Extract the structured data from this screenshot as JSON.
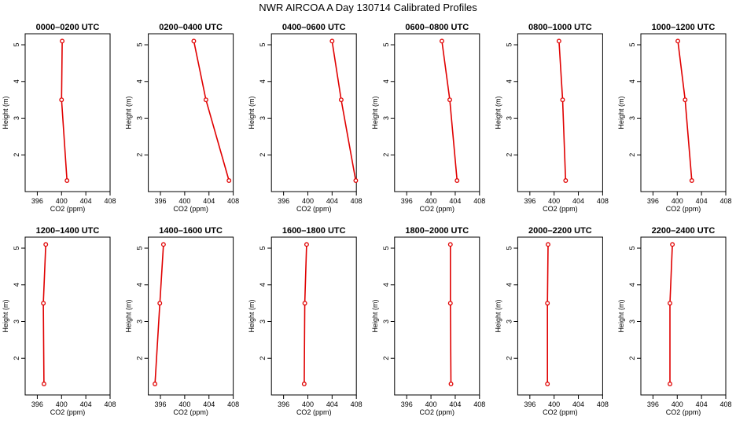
{
  "figure_title": "NWR AIRCOA A  Day 130714  Calibrated Profiles",
  "colors": {
    "line": "#e00000",
    "marker": "#e00000",
    "axis": "#000000"
  },
  "chart_data": [
    {
      "type": "line",
      "title": "0000–0200 UTC",
      "xlabel": "CO2 (ppm)",
      "ylabel": "Height (m)",
      "xlim": [
        394,
        408
      ],
      "ylim": [
        1,
        5.3
      ],
      "xticks": [
        396,
        400,
        404,
        408
      ],
      "yticks": [
        2,
        3,
        4,
        5
      ],
      "series": [
        {
          "name": "CO2",
          "x": [
            400.9,
            400.0,
            400.1
          ],
          "y": [
            1.3,
            3.5,
            5.1
          ]
        }
      ]
    },
    {
      "type": "line",
      "title": "0200–0400 UTC",
      "xlabel": "CO2 (ppm)",
      "ylabel": "Height (m)",
      "xlim": [
        394,
        408
      ],
      "ylim": [
        1,
        5.3
      ],
      "xticks": [
        396,
        400,
        404,
        408
      ],
      "yticks": [
        2,
        3,
        4,
        5
      ],
      "series": [
        {
          "name": "CO2",
          "x": [
            407.3,
            403.5,
            401.5
          ],
          "y": [
            1.3,
            3.5,
            5.1
          ]
        }
      ]
    },
    {
      "type": "line",
      "title": "0400–0600 UTC",
      "xlabel": "CO2 (ppm)",
      "ylabel": "Height (m)",
      "xlim": [
        394,
        408
      ],
      "ylim": [
        1,
        5.3
      ],
      "xticks": [
        396,
        400,
        404,
        408
      ],
      "yticks": [
        2,
        3,
        4,
        5
      ],
      "series": [
        {
          "name": "CO2",
          "x": [
            407.9,
            405.5,
            404.0
          ],
          "y": [
            1.3,
            3.5,
            5.1
          ]
        }
      ]
    },
    {
      "type": "line",
      "title": "0600–0800 UTC",
      "xlabel": "CO2 (ppm)",
      "ylabel": "Height (m)",
      "xlim": [
        394,
        408
      ],
      "ylim": [
        1,
        5.3
      ],
      "xticks": [
        396,
        400,
        404,
        408
      ],
      "yticks": [
        2,
        3,
        4,
        5
      ],
      "series": [
        {
          "name": "CO2",
          "x": [
            404.3,
            403.1,
            401.8
          ],
          "y": [
            1.3,
            3.5,
            5.1
          ]
        }
      ]
    },
    {
      "type": "line",
      "title": "0800–1000 UTC",
      "xlabel": "CO2 (ppm)",
      "ylabel": "Height (m)",
      "xlim": [
        394,
        408
      ],
      "ylim": [
        1,
        5.3
      ],
      "xticks": [
        396,
        400,
        404,
        408
      ],
      "yticks": [
        2,
        3,
        4,
        5
      ],
      "series": [
        {
          "name": "CO2",
          "x": [
            401.9,
            401.4,
            400.8
          ],
          "y": [
            1.3,
            3.5,
            5.1
          ]
        }
      ]
    },
    {
      "type": "line",
      "title": "1000–1200 UTC",
      "xlabel": "CO2 (ppm)",
      "ylabel": "Height (m)",
      "xlim": [
        394,
        408
      ],
      "ylim": [
        1,
        5.3
      ],
      "xticks": [
        396,
        400,
        404,
        408
      ],
      "yticks": [
        2,
        3,
        4,
        5
      ],
      "series": [
        {
          "name": "CO2",
          "x": [
            402.4,
            401.3,
            400.1
          ],
          "y": [
            1.3,
            3.5,
            5.1
          ]
        }
      ]
    },
    {
      "type": "line",
      "title": "1200–1400 UTC",
      "xlabel": "CO2 (ppm)",
      "ylabel": "Height (m)",
      "xlim": [
        394,
        408
      ],
      "ylim": [
        1,
        5.3
      ],
      "xticks": [
        396,
        400,
        404,
        408
      ],
      "yticks": [
        2,
        3,
        4,
        5
      ],
      "series": [
        {
          "name": "CO2",
          "x": [
            397.1,
            397.0,
            397.4
          ],
          "y": [
            1.3,
            3.5,
            5.1
          ]
        }
      ]
    },
    {
      "type": "line",
      "title": "1400–1600 UTC",
      "xlabel": "CO2 (ppm)",
      "ylabel": "Height (m)",
      "xlim": [
        394,
        408
      ],
      "ylim": [
        1,
        5.3
      ],
      "xticks": [
        396,
        400,
        404,
        408
      ],
      "yticks": [
        2,
        3,
        4,
        5
      ],
      "series": [
        {
          "name": "CO2",
          "x": [
            395.1,
            395.9,
            396.5
          ],
          "y": [
            1.3,
            3.5,
            5.1
          ]
        }
      ]
    },
    {
      "type": "line",
      "title": "1600–1800 UTC",
      "xlabel": "CO2 (ppm)",
      "ylabel": "Height (m)",
      "xlim": [
        394,
        408
      ],
      "ylim": [
        1,
        5.3
      ],
      "xticks": [
        396,
        400,
        404,
        408
      ],
      "yticks": [
        2,
        3,
        4,
        5
      ],
      "series": [
        {
          "name": "CO2",
          "x": [
            399.4,
            399.5,
            399.8
          ],
          "y": [
            1.3,
            3.5,
            5.1
          ]
        }
      ]
    },
    {
      "type": "line",
      "title": "1800–2000 UTC",
      "xlabel": "CO2 (ppm)",
      "ylabel": "Height (m)",
      "xlim": [
        394,
        408
      ],
      "ylim": [
        1,
        5.3
      ],
      "xticks": [
        396,
        400,
        404,
        408
      ],
      "yticks": [
        2,
        3,
        4,
        5
      ],
      "series": [
        {
          "name": "CO2",
          "x": [
            403.3,
            403.2,
            403.2
          ],
          "y": [
            1.3,
            3.5,
            5.1
          ]
        }
      ]
    },
    {
      "type": "line",
      "title": "2000–2200 UTC",
      "xlabel": "CO2 (ppm)",
      "ylabel": "Height (m)",
      "xlim": [
        394,
        408
      ],
      "ylim": [
        1,
        5.3
      ],
      "xticks": [
        396,
        400,
        404,
        408
      ],
      "yticks": [
        2,
        3,
        4,
        5
      ],
      "series": [
        {
          "name": "CO2",
          "x": [
            398.9,
            398.9,
            399.0
          ],
          "y": [
            1.3,
            3.5,
            5.1
          ]
        }
      ]
    },
    {
      "type": "line",
      "title": "2200–2400 UTC",
      "xlabel": "CO2 (ppm)",
      "ylabel": "Height (m)",
      "xlim": [
        394,
        408
      ],
      "ylim": [
        1,
        5.3
      ],
      "xticks": [
        396,
        400,
        404,
        408
      ],
      "yticks": [
        2,
        3,
        4,
        5
      ],
      "series": [
        {
          "name": "CO2",
          "x": [
            398.8,
            398.8,
            399.2
          ],
          "y": [
            1.3,
            3.5,
            5.1
          ]
        }
      ]
    }
  ]
}
